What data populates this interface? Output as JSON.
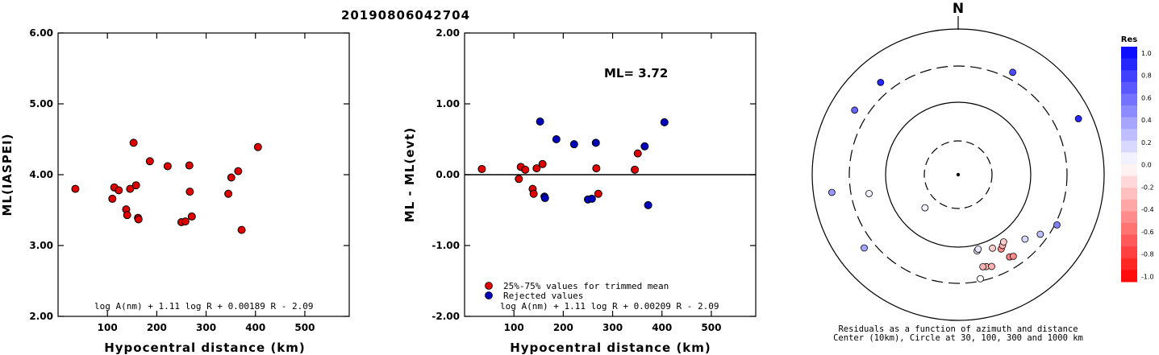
{
  "event_id": "20190806042704",
  "chart_data": [
    {
      "type": "scatter",
      "title": "",
      "xlabel": "Hypocentral distance (km)",
      "ylabel": "ML(IASPEI)",
      "xlim": [
        0,
        590
      ],
      "ylim": [
        2.0,
        6.0
      ],
      "xticks": [
        "100",
        "200",
        "300",
        "400",
        "500"
      ],
      "yticks": [
        "2.00",
        "3.00",
        "4.00",
        "5.00",
        "6.00"
      ],
      "formula": "log A(nm) + 1.11 log R + 0.00189 R - 2.09",
      "series": [
        {
          "color": "#dd0000",
          "x": [
            35,
            110,
            114,
            123,
            138,
            140,
            146,
            153,
            158,
            162,
            163,
            186,
            222,
            250,
            258,
            266,
            267,
            271,
            345,
            351,
            365,
            372,
            405
          ],
          "y": [
            3.8,
            3.66,
            3.82,
            3.78,
            3.51,
            3.43,
            3.8,
            4.45,
            3.85,
            3.39,
            3.37,
            4.19,
            4.12,
            3.33,
            3.34,
            4.13,
            3.76,
            3.41,
            3.73,
            3.96,
            4.05,
            3.22,
            4.39
          ]
        }
      ]
    },
    {
      "type": "scatter",
      "title": "",
      "xlabel": "Hypocentral distance (km)",
      "ylabel": "ML - ML(evt)",
      "xlim": [
        0,
        590
      ],
      "ylim": [
        -2.0,
        2.0
      ],
      "xticks": [
        "100",
        "200",
        "300",
        "400",
        "500"
      ],
      "yticks": [
        "-2.00",
        "-1.00",
        "0.00",
        "1.00",
        "2.00"
      ],
      "annotation": "ML= 3.72",
      "formula": "log A(nm) + 1.11 log R + 0.00209 R - 2.09",
      "series": [
        {
          "name": "25%-75% values for trimmed mean",
          "color": "#dd0000",
          "x": [
            35,
            110,
            114,
            123,
            138,
            140,
            146,
            158,
            267,
            271,
            345,
            351
          ],
          "y": [
            0.08,
            -0.06,
            0.11,
            0.07,
            -0.2,
            -0.27,
            0.09,
            0.15,
            0.09,
            -0.27,
            0.07,
            0.3
          ]
        },
        {
          "name": "Rejected values",
          "color": "#0000bb",
          "x": [
            153,
            162,
            163,
            186,
            222,
            250,
            258,
            266,
            365,
            372,
            405
          ],
          "y": [
            0.75,
            -0.31,
            -0.33,
            0.5,
            0.43,
            -0.35,
            -0.34,
            0.45,
            0.4,
            -0.43,
            0.74
          ]
        }
      ]
    },
    {
      "type": "scatter",
      "title": "N",
      "caption_1": "Residuals as a function of azimuth and distance",
      "caption_2": "Center (10km), Circle at 30, 100, 300 and 1000 km",
      "colorbar_title": "Res",
      "colorbar_ticks": [
        "1.0",
        "0.8",
        "0.6",
        "0.4",
        "0.2",
        "0.0",
        "-0.2",
        "-0.4",
        "-0.6",
        "-0.8",
        "-1.0"
      ],
      "circles_km": [
        30,
        100,
        300,
        1000
      ],
      "points": [
        {
          "az": 28,
          "dist_km": 380,
          "res": 0.7
        },
        {
          "az": 65,
          "dist_km": 650,
          "res": 0.85
        },
        {
          "az": 320,
          "dist_km": 440,
          "res": 0.85
        },
        {
          "az": 302,
          "dist_km": 460,
          "res": 0.6
        },
        {
          "az": 262,
          "dist_km": 550,
          "res": 0.4
        },
        {
          "az": 232,
          "dist_km": 420,
          "res": 0.35
        },
        {
          "az": 117,
          "dist_km": 320,
          "res": 0.5
        },
        {
          "az": 126,
          "dist_km": 240,
          "res": 0.25
        },
        {
          "az": 134,
          "dist_km": 185,
          "res": 0.15
        },
        {
          "az": 258,
          "dist_km": 175,
          "res": 0.05
        },
        {
          "az": 225,
          "dist_km": 45,
          "res": 0.05
        },
        {
          "az": 166,
          "dist_km": 120,
          "res": 0.05
        },
        {
          "az": 165,
          "dist_km": 115,
          "res": 0.1
        },
        {
          "az": 150,
          "dist_km": 150,
          "res": -0.45
        },
        {
          "az": 148,
          "dist_km": 140,
          "res": -0.3
        },
        {
          "az": 146,
          "dist_km": 130,
          "res": -0.2
        },
        {
          "az": 155,
          "dist_km": 130,
          "res": -0.2
        },
        {
          "az": 163,
          "dist_km": 205,
          "res": -0.3
        },
        {
          "az": 160,
          "dist_km": 215,
          "res": -0.3
        },
        {
          "az": 165,
          "dist_km": 200,
          "res": -0.3
        },
        {
          "az": 148,
          "dist_km": 210,
          "res": -0.5
        },
        {
          "az": 146,
          "dist_km": 220,
          "res": -0.45
        },
        {
          "az": 168,
          "dist_km": 280,
          "res": 0.0
        }
      ]
    }
  ]
}
